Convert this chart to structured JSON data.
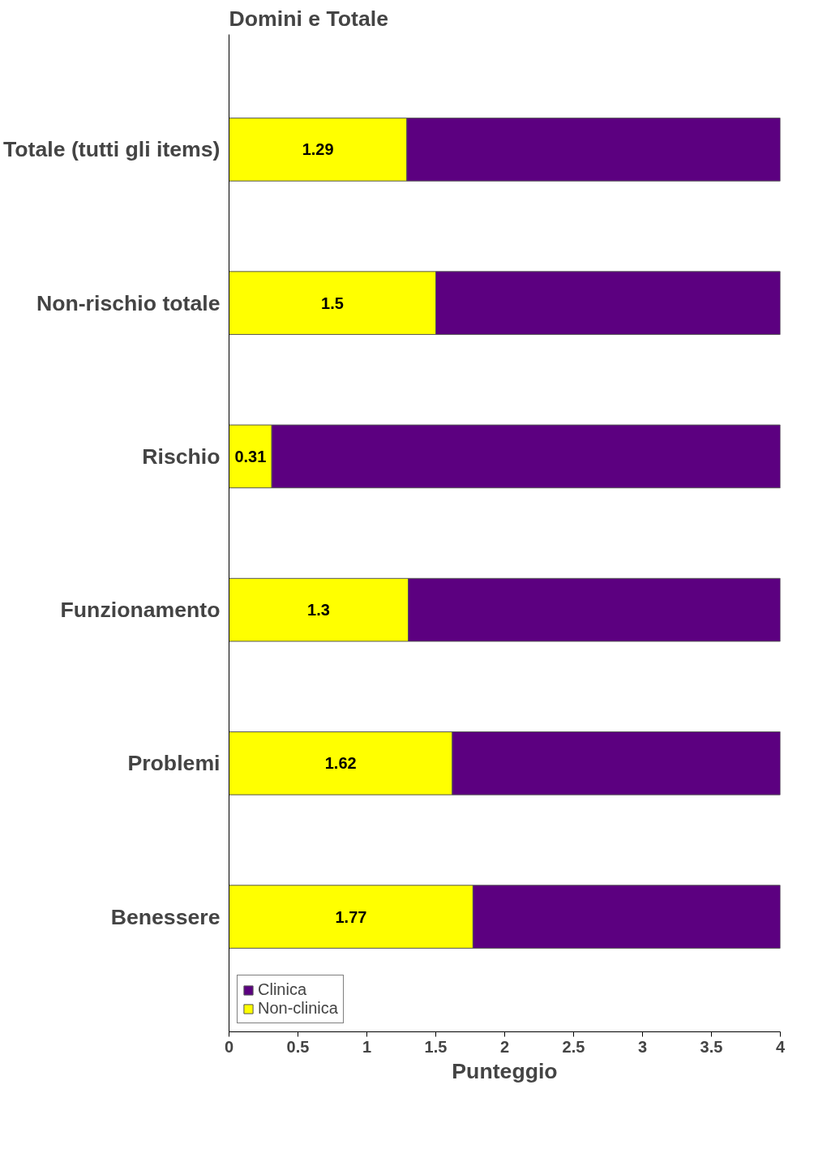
{
  "chart_data": {
    "type": "bar",
    "orientation": "horizontal",
    "stacked": true,
    "ylabel": "Domini e Totale",
    "xlabel": "Punteggio",
    "categories": [
      "Totale (tutti gli items)",
      "Non-rischio totale",
      "Rischio",
      "Funzionamento",
      "Problemi",
      "Benessere"
    ],
    "series": [
      {
        "name": "Non-clinica",
        "color": "#ffff00",
        "values": [
          1.29,
          1.5,
          0.31,
          1.3,
          1.62,
          1.77
        ],
        "value_labels": [
          "1.29",
          "1.5",
          "0.31",
          "1.3",
          "1.62",
          "1.77"
        ]
      },
      {
        "name": "Clinica",
        "color": "#5c0080",
        "values": [
          2.71,
          2.5,
          3.69,
          2.7,
          2.38,
          2.23
        ]
      }
    ],
    "xlim": [
      0,
      4
    ],
    "xticks": [
      0,
      0.5,
      1,
      1.5,
      2,
      2.5,
      3,
      3.5,
      4
    ],
    "grid": false,
    "legend": "bottom left"
  }
}
